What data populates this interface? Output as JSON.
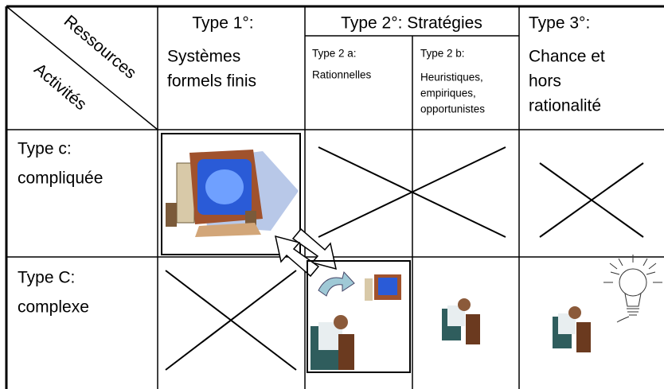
{
  "header": {
    "corner": {
      "top": "Ressources",
      "bottom": "Activités"
    },
    "type1": {
      "title": "Type 1°:",
      "lines": [
        "Systèmes",
        "formels finis"
      ]
    },
    "type2": {
      "title": "Type 2°: Stratégies",
      "a": {
        "title": "Type 2 a:",
        "lines": [
          "Rationnelles"
        ]
      },
      "b": {
        "title": "Type 2 b:",
        "lines": [
          "Heuristiques,",
          "empiriques,",
          "opportunistes"
        ]
      }
    },
    "type3": {
      "title": "Type 3°:",
      "lines": [
        "Chance et",
        "hors",
        "rationalité"
      ]
    }
  },
  "rows": [
    {
      "label": "Type c:",
      "sublabel": "compliquée"
    },
    {
      "label": "Type C:",
      "sublabel": "complexe"
    }
  ]
}
